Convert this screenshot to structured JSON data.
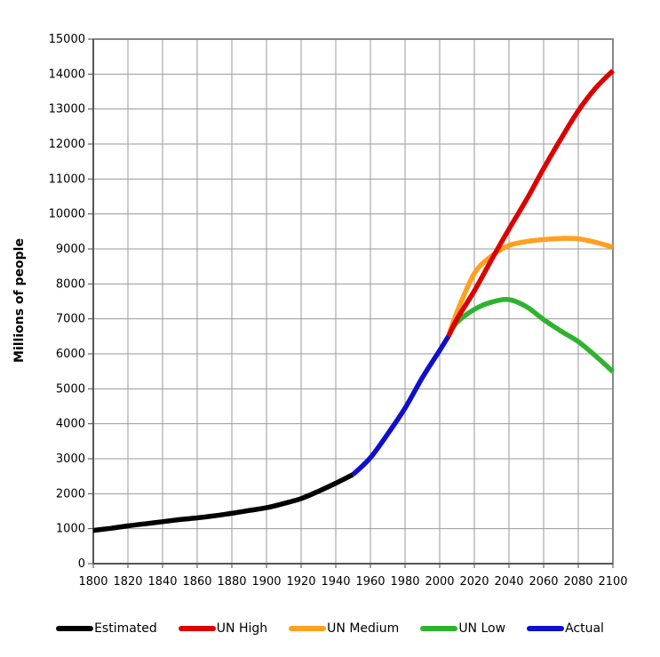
{
  "chart_data": {
    "type": "line",
    "title": "",
    "xlabel": "",
    "ylabel": "Millions of people",
    "xlim": [
      1800,
      2100
    ],
    "ylim": [
      0,
      15000
    ],
    "x_ticks": [
      1800,
      1820,
      1840,
      1860,
      1880,
      1900,
      1920,
      1940,
      1960,
      1980,
      2000,
      2020,
      2040,
      2060,
      2080,
      2100
    ],
    "y_ticks": [
      0,
      1000,
      2000,
      3000,
      4000,
      5000,
      6000,
      7000,
      8000,
      9000,
      10000,
      11000,
      12000,
      13000,
      14000,
      15000
    ],
    "grid": true,
    "legend_position": "bottom",
    "colors": {
      "grid": "#999999",
      "border": "#888888",
      "axis": "#444444",
      "background": "#ffffff"
    },
    "series": [
      {
        "name": "Estimated",
        "color": "#000000",
        "points": [
          [
            1800,
            950
          ],
          [
            1810,
            1010
          ],
          [
            1820,
            1080
          ],
          [
            1830,
            1140
          ],
          [
            1840,
            1200
          ],
          [
            1850,
            1260
          ],
          [
            1860,
            1310
          ],
          [
            1870,
            1370
          ],
          [
            1880,
            1440
          ],
          [
            1890,
            1520
          ],
          [
            1900,
            1600
          ],
          [
            1910,
            1720
          ],
          [
            1920,
            1860
          ],
          [
            1930,
            2070
          ],
          [
            1940,
            2300
          ],
          [
            1950,
            2550
          ]
        ]
      },
      {
        "name": "UN Low",
        "color": "#2FB32F",
        "points": [
          [
            2005,
            6500
          ],
          [
            2010,
            6900
          ],
          [
            2020,
            7270
          ],
          [
            2030,
            7480
          ],
          [
            2040,
            7550
          ],
          [
            2050,
            7350
          ],
          [
            2060,
            6980
          ],
          [
            2070,
            6650
          ],
          [
            2080,
            6350
          ],
          [
            2090,
            5940
          ],
          [
            2100,
            5490
          ]
        ]
      },
      {
        "name": "UN Medium",
        "color": "#FFA01E",
        "points": [
          [
            2005,
            6500
          ],
          [
            2010,
            7200
          ],
          [
            2020,
            8300
          ],
          [
            2030,
            8800
          ],
          [
            2040,
            9100
          ],
          [
            2050,
            9210
          ],
          [
            2060,
            9270
          ],
          [
            2070,
            9300
          ],
          [
            2080,
            9290
          ],
          [
            2090,
            9190
          ],
          [
            2100,
            9050
          ]
        ]
      },
      {
        "name": "UN High",
        "color": "#DD0000",
        "points": [
          [
            2005,
            6500
          ],
          [
            2010,
            7000
          ],
          [
            2020,
            7800
          ],
          [
            2030,
            8700
          ],
          [
            2040,
            9570
          ],
          [
            2050,
            10400
          ],
          [
            2060,
            11300
          ],
          [
            2070,
            12150
          ],
          [
            2080,
            12950
          ],
          [
            2090,
            13600
          ],
          [
            2100,
            14100
          ]
        ]
      },
      {
        "name": "Actual",
        "color": "#0F0FCC",
        "points": [
          [
            1950,
            2550
          ],
          [
            1960,
            3030
          ],
          [
            1970,
            3710
          ],
          [
            1980,
            4450
          ],
          [
            1990,
            5320
          ],
          [
            2000,
            6100
          ],
          [
            2005,
            6500
          ]
        ]
      }
    ],
    "legend_order": [
      "Estimated",
      "UN High",
      "UN Medium",
      "UN Low",
      "Actual"
    ]
  }
}
